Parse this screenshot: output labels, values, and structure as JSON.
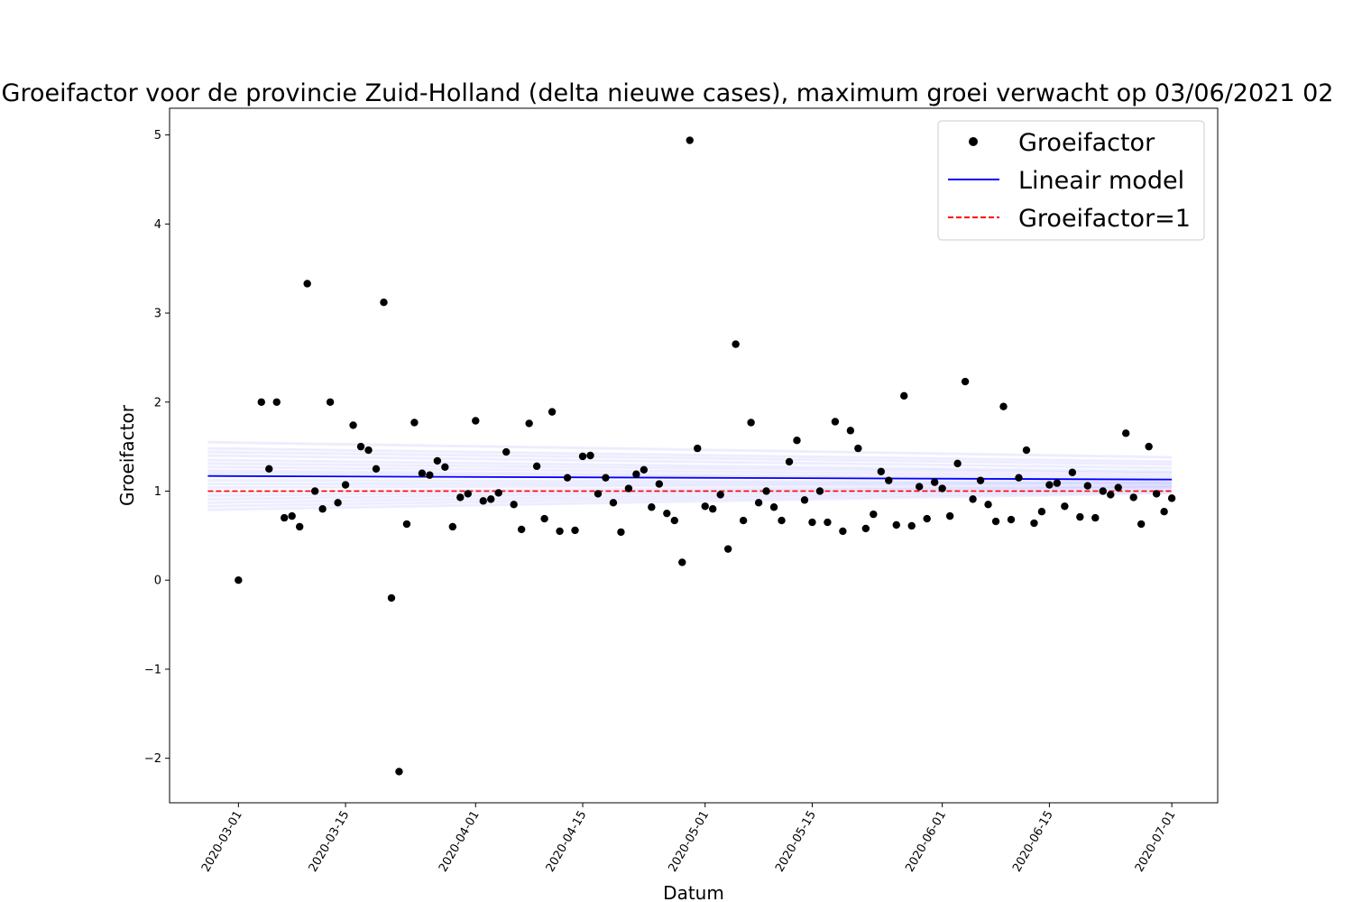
{
  "chart_data": {
    "type": "scatter",
    "title": "Groeifactor voor de provincie Zuid-Holland (delta nieuwe cases), maximum groei verwacht op 03/06/2021 02",
    "xlabel": "Datum",
    "ylabel": "Groeifactor",
    "xlim": [
      "2020-02-21",
      "2020-07-07"
    ],
    "ylim": [
      -2.5,
      5.3
    ],
    "x_ticks": [
      "2020-03-01",
      "2020-03-15",
      "2020-04-01",
      "2020-04-15",
      "2020-05-01",
      "2020-05-15",
      "2020-06-01",
      "2020-06-15",
      "2020-07-01"
    ],
    "y_ticks": [
      -2,
      -1,
      0,
      1,
      2,
      3,
      4,
      5
    ],
    "y_tick_labels": [
      "−2",
      "−1",
      "0",
      "1",
      "2",
      "3",
      "4",
      "5"
    ],
    "grid": false,
    "legend_position": "top-right",
    "legend": [
      {
        "label": "Groeifactor",
        "marker": "dot",
        "color": "#000000"
      },
      {
        "label": "Lineair model",
        "marker": "line",
        "color": "#0000ff"
      },
      {
        "label": "Groeifactor=1",
        "marker": "dashed",
        "color": "#ff0000"
      }
    ],
    "colors": {
      "points": "#000000",
      "model": "#0000ff",
      "reference": "#ff0000"
    },
    "series": [
      {
        "name": "Groeifactor",
        "kind": "points",
        "x": [
          "2020-03-01",
          "2020-03-04",
          "2020-03-05",
          "2020-03-06",
          "2020-03-07",
          "2020-03-08",
          "2020-03-09",
          "2020-03-10",
          "2020-03-11",
          "2020-03-12",
          "2020-03-13",
          "2020-03-14",
          "2020-03-15",
          "2020-03-16",
          "2020-03-17",
          "2020-03-18",
          "2020-03-19",
          "2020-03-20",
          "2020-03-21",
          "2020-03-22",
          "2020-03-23",
          "2020-03-24",
          "2020-03-25",
          "2020-03-26",
          "2020-03-27",
          "2020-03-28",
          "2020-03-29",
          "2020-03-30",
          "2020-03-31",
          "2020-04-01",
          "2020-04-02",
          "2020-04-03",
          "2020-04-04",
          "2020-04-05",
          "2020-04-06",
          "2020-04-07",
          "2020-04-08",
          "2020-04-09",
          "2020-04-10",
          "2020-04-11",
          "2020-04-12",
          "2020-04-13",
          "2020-04-14",
          "2020-04-15",
          "2020-04-16",
          "2020-04-17",
          "2020-04-18",
          "2020-04-19",
          "2020-04-20",
          "2020-04-21",
          "2020-04-22",
          "2020-04-23",
          "2020-04-24",
          "2020-04-25",
          "2020-04-26",
          "2020-04-27",
          "2020-04-28",
          "2020-04-29",
          "2020-04-30",
          "2020-05-01",
          "2020-05-02",
          "2020-05-03",
          "2020-05-04",
          "2020-05-05",
          "2020-05-06",
          "2020-05-07",
          "2020-05-08",
          "2020-05-09",
          "2020-05-10",
          "2020-05-11",
          "2020-05-12",
          "2020-05-13",
          "2020-05-14",
          "2020-05-15",
          "2020-05-16",
          "2020-05-17",
          "2020-05-18",
          "2020-05-19",
          "2020-05-20",
          "2020-05-21",
          "2020-05-22",
          "2020-05-23",
          "2020-05-24",
          "2020-05-25",
          "2020-05-26",
          "2020-05-27",
          "2020-05-28",
          "2020-05-29",
          "2020-05-30",
          "2020-05-31",
          "2020-06-01",
          "2020-06-02",
          "2020-06-03",
          "2020-06-04",
          "2020-06-05",
          "2020-06-06",
          "2020-06-07",
          "2020-06-08",
          "2020-06-09",
          "2020-06-10",
          "2020-06-11",
          "2020-06-12",
          "2020-06-13",
          "2020-06-14",
          "2020-06-15",
          "2020-06-16",
          "2020-06-17",
          "2020-06-18",
          "2020-06-19",
          "2020-06-20",
          "2020-06-21",
          "2020-06-22",
          "2020-06-23",
          "2020-06-24",
          "2020-06-25",
          "2020-06-26",
          "2020-06-27",
          "2020-06-28",
          "2020-06-29",
          "2020-06-30",
          "2020-07-01"
        ],
        "y": [
          0.0,
          2.0,
          1.25,
          2.0,
          0.7,
          0.72,
          0.6,
          3.33,
          1.0,
          0.8,
          2.0,
          0.87,
          1.07,
          1.74,
          1.5,
          1.46,
          1.25,
          3.12,
          -0.2,
          -2.15,
          0.63,
          1.77,
          1.2,
          1.18,
          1.34,
          1.27,
          0.6,
          0.93,
          0.97,
          1.79,
          0.89,
          0.91,
          0.98,
          1.44,
          0.85,
          0.57,
          1.76,
          1.28,
          0.69,
          1.89,
          0.55,
          1.15,
          0.56,
          1.39,
          1.4,
          0.97,
          1.15,
          0.87,
          0.54,
          1.03,
          1.19,
          1.24,
          0.82,
          1.08,
          0.75,
          0.67,
          0.2,
          4.94,
          1.48,
          0.83,
          0.8,
          0.96,
          0.35,
          2.65,
          0.67,
          1.77,
          0.87,
          1.0,
          0.82,
          0.67,
          1.33,
          1.57,
          0.9,
          0.65,
          1.0,
          0.65,
          1.78,
          0.55,
          1.68,
          1.48,
          0.58,
          0.74,
          1.22,
          1.12,
          0.62,
          2.07,
          0.61,
          1.05,
          0.69,
          1.1,
          1.03,
          0.72,
          1.31,
          2.23,
          0.91,
          1.12,
          0.85,
          0.66,
          1.95,
          0.68,
          1.15,
          1.46,
          0.64,
          0.77,
          1.07,
          1.09,
          0.83,
          1.21,
          0.71,
          1.06,
          0.7,
          1.0,
          0.96,
          1.04,
          1.65,
          0.93,
          0.63,
          1.5,
          0.97,
          0.77,
          0.92
        ]
      },
      {
        "name": "Lineair model",
        "kind": "line",
        "x": [
          "2020-02-26",
          "2020-07-01"
        ],
        "y": [
          1.17,
          1.13
        ]
      },
      {
        "name": "Groeifactor=1",
        "kind": "dashed",
        "x": [
          "2020-02-26",
          "2020-07-01"
        ],
        "y": [
          1.0,
          1.0
        ]
      }
    ],
    "uncertainty_band": {
      "color": "#0000ff",
      "lines": [
        {
          "y": [
            1.55,
            1.38
          ]
        },
        {
          "y": [
            1.48,
            1.33
          ]
        },
        {
          "y": [
            1.44,
            1.3
          ]
        },
        {
          "y": [
            1.4,
            1.26
          ]
        },
        {
          "y": [
            1.35,
            1.22
          ]
        },
        {
          "y": [
            1.31,
            1.2
          ]
        },
        {
          "y": [
            1.27,
            1.17
          ]
        },
        {
          "y": [
            1.23,
            1.14
          ]
        },
        {
          "y": [
            1.2,
            1.12
          ]
        },
        {
          "y": [
            1.12,
            1.1
          ]
        },
        {
          "y": [
            1.08,
            1.09
          ]
        },
        {
          "y": [
            1.04,
            1.08
          ]
        },
        {
          "y": [
            0.99,
            1.06
          ]
        },
        {
          "y": [
            0.95,
            1.05
          ]
        },
        {
          "y": [
            0.91,
            1.04
          ]
        },
        {
          "y": [
            0.87,
            1.02
          ]
        },
        {
          "y": [
            0.83,
            1.0
          ]
        },
        {
          "y": [
            0.79,
            0.98
          ]
        }
      ]
    }
  }
}
